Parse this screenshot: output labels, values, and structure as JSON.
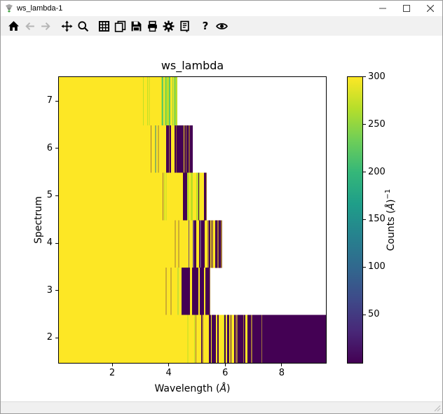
{
  "window": {
    "title": "ws_lambda-1"
  },
  "toolbar": {
    "buttons": [
      {
        "name": "home",
        "enabled": true
      },
      {
        "name": "back",
        "enabled": false
      },
      {
        "name": "forward",
        "enabled": false
      },
      {
        "name": "pan",
        "enabled": true
      },
      {
        "name": "zoom",
        "enabled": true
      },
      {
        "name": "grid",
        "enabled": true
      },
      {
        "name": "copy",
        "enabled": true
      },
      {
        "name": "save",
        "enabled": true
      },
      {
        "name": "print",
        "enabled": true
      },
      {
        "name": "customize",
        "enabled": true
      },
      {
        "name": "generate-script",
        "enabled": true
      },
      {
        "name": "help",
        "enabled": true,
        "label": "?"
      },
      {
        "name": "superplot",
        "enabled": true
      }
    ]
  },
  "chart_data": {
    "type": "heatmap",
    "title": "ws_lambda",
    "xlabel_pre": "Wavelength (",
    "xlabel_symbol": "Å",
    "xlabel_post": ")",
    "ylabel": "Spectrum",
    "colorbar_label_pre": "Counts (",
    "colorbar_label_symbol": "Å",
    "colorbar_label_post": ")",
    "colorbar_label_sup": "−1",
    "colormap": "viridis",
    "color_max": "#fde725",
    "color_min": "#440154",
    "viridis_stops": [
      "#440154",
      "#482878",
      "#3e4a89",
      "#31688e",
      "#26828e",
      "#1f9e89",
      "#35b779",
      "#6ece58",
      "#b5de2b",
      "#fde725"
    ],
    "xlim": [
      0.09,
      9.59
    ],
    "ylim": [
      1.46,
      7.52
    ],
    "xticks": [
      2,
      4,
      6,
      8
    ],
    "yticks": [
      2,
      3,
      4,
      5,
      6,
      7
    ],
    "grid": false,
    "colorbar": {
      "min": 0,
      "max": 300,
      "ticks": [
        50,
        100,
        150,
        200,
        250,
        300
      ]
    },
    "rows": [
      {
        "spectrum": 7,
        "y_top": 7.52,
        "y_bottom": 6.5,
        "solid_to": 3.71,
        "striped_to": 4.28,
        "tail_to": null
      },
      {
        "spectrum": 6,
        "y_top": 6.5,
        "y_bottom": 5.5,
        "solid_to": 3.84,
        "striped_to": 4.83,
        "tail_to": null
      },
      {
        "spectrum": 5,
        "y_top": 5.5,
        "y_bottom": 4.5,
        "solid_to": 4.26,
        "striped_to": 5.32,
        "tail_to": null
      },
      {
        "spectrum": 4,
        "y_top": 4.5,
        "y_bottom": 3.5,
        "solid_to": 4.83,
        "striped_to": 5.87,
        "tail_to": null
      },
      {
        "spectrum": 3,
        "y_top": 3.5,
        "y_bottom": 2.5,
        "solid_to": 4.43,
        "striped_to": 5.45,
        "tail_to": null
      },
      {
        "spectrum": 2,
        "y_top": 2.5,
        "y_bottom": 1.46,
        "solid_to": 5.12,
        "striped_to": 7.48,
        "tail_to": 9.59
      }
    ]
  },
  "statusbar": {
    "text": ""
  }
}
